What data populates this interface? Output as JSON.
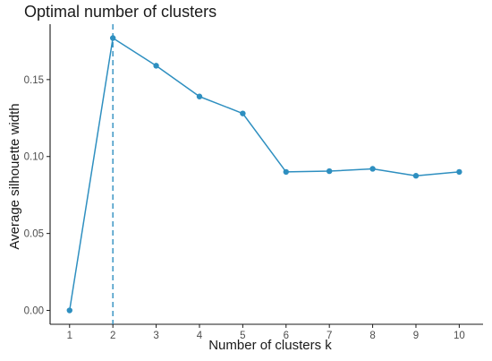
{
  "chart_data": {
    "type": "line",
    "title": "Optimal number of clusters",
    "xlabel": "Number of clusters k",
    "ylabel": "Average silhouette width",
    "x": [
      1,
      2,
      3,
      4,
      5,
      6,
      7,
      8,
      9,
      10
    ],
    "series": [
      {
        "values": [
          0.0,
          0.177,
          0.159,
          0.139,
          0.128,
          0.09,
          0.0905,
          0.092,
          0.0875,
          0.09
        ]
      }
    ],
    "xticks": [
      "1",
      "2",
      "3",
      "4",
      "5",
      "6",
      "7",
      "8",
      "9",
      "10"
    ],
    "yticks": [
      0.0,
      0.05,
      0.1,
      0.15
    ],
    "ytick_labels": [
      "0.00",
      "0.05",
      "0.10",
      "0.15"
    ],
    "xlim": [
      0.55,
      10.55
    ],
    "ylim": [
      -0.009,
      0.186
    ],
    "optimal_k": 2,
    "grid": false,
    "colors": {
      "series": "#2E8FC0",
      "axis": "#1a1a1a",
      "tick_text": "#4d4d4d"
    }
  }
}
